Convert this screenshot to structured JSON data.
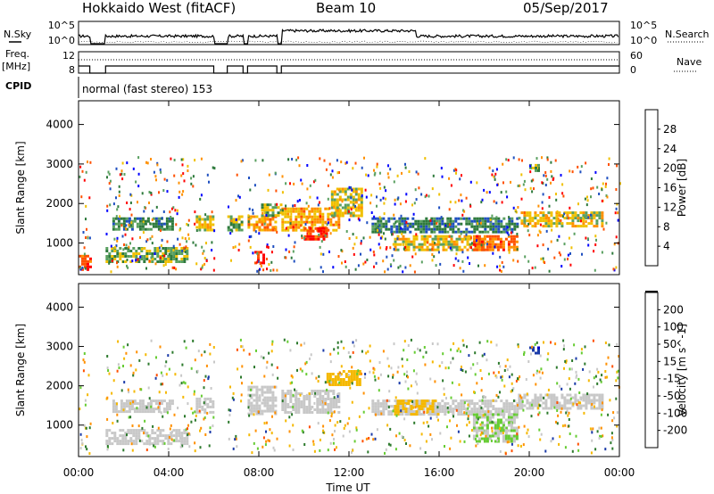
{
  "header": {
    "station": "Hokkaido West (fitACF)",
    "beam": "Beam 10",
    "date": "05/Sep/2017"
  },
  "top_panels": {
    "nsky_label": "N.Sky",
    "nsky_ticks": [
      "10^5",
      "10^0"
    ],
    "nsearch_label": "N.Search",
    "nsearch_ticks": [
      "10^5",
      "10^0"
    ],
    "freq_label": "Freq.",
    "freq_unit": "[MHz]",
    "freq_ticks": [
      "12",
      "8"
    ],
    "nave_label": "Nave",
    "nave_ticks": [
      "60",
      "0"
    ],
    "cpid_label": "CPID",
    "cpid_value": "normal (fast stereo) 153"
  },
  "colors": {
    "power_scale": [
      "#0000ff",
      "#1f4fc0",
      "#2e7a3c",
      "#5aa060",
      "#f0c000",
      "#ff9000",
      "#ff5000",
      "#ff0000"
    ],
    "velocity_scale": [
      "#ff0000",
      "#ff5000",
      "#ff9000",
      "#f5b800",
      "#c8c8c8",
      "#66cc33",
      "#2d7a2d",
      "#1a3aa8",
      "#0000cc"
    ],
    "ground_scatter": "#b4b4b4"
  },
  "chart_data": [
    {
      "type": "heatmap",
      "name": "power",
      "ylabel": "Slant Range [km]",
      "yticks": [
        "1000",
        "2000",
        "3000",
        "4000"
      ],
      "ylim": [
        200,
        4600
      ],
      "xlim_hours": [
        0,
        24
      ],
      "xticks": [
        "00:00",
        "04:00",
        "08:00",
        "12:00",
        "16:00",
        "20:00",
        "00:00"
      ],
      "colorbar": {
        "label": "Power [dB]",
        "ticks": [
          "4",
          "8",
          "12",
          "16",
          "20",
          "24",
          "28"
        ],
        "range": [
          0,
          30
        ]
      },
      "echo_regions": [
        {
          "t0": 0.0,
          "t1": 0.5,
          "r0": 300,
          "r1": 700,
          "level": 26
        },
        {
          "t0": 1.2,
          "t1": 4.8,
          "r0": 500,
          "r1": 900,
          "level": 13
        },
        {
          "t0": 1.5,
          "t1": 4.2,
          "r0": 1350,
          "r1": 1650,
          "level": 10
        },
        {
          "t0": 5.2,
          "t1": 6.0,
          "r0": 1350,
          "r1": 1700,
          "level": 16
        },
        {
          "t0": 6.6,
          "t1": 7.3,
          "r0": 1300,
          "r1": 1700,
          "level": 13
        },
        {
          "t0": 7.5,
          "t1": 8.8,
          "r0": 1300,
          "r1": 1700,
          "level": 20
        },
        {
          "t0": 7.8,
          "t1": 8.2,
          "r0": 500,
          "r1": 800,
          "level": 28
        },
        {
          "t0": 8.1,
          "t1": 9.0,
          "r0": 1700,
          "r1": 2000,
          "level": 14
        },
        {
          "t0": 9.0,
          "t1": 11.6,
          "r0": 1300,
          "r1": 1900,
          "level": 19
        },
        {
          "t0": 10.0,
          "t1": 11.0,
          "r0": 1100,
          "r1": 1400,
          "level": 26
        },
        {
          "t0": 11.2,
          "t1": 12.6,
          "r0": 1700,
          "r1": 2400,
          "level": 16
        },
        {
          "t0": 13.0,
          "t1": 19.5,
          "r0": 1300,
          "r1": 1650,
          "level": 9
        },
        {
          "t0": 14.0,
          "t1": 18.0,
          "r0": 800,
          "r1": 1200,
          "level": 17
        },
        {
          "t0": 17.5,
          "t1": 19.5,
          "r0": 800,
          "r1": 1200,
          "level": 23
        },
        {
          "t0": 19.5,
          "t1": 23.2,
          "r0": 1400,
          "r1": 1800,
          "level": 17
        },
        {
          "t0": 20.0,
          "t1": 20.4,
          "r0": 2800,
          "r1": 3000,
          "level": 13
        }
      ]
    },
    {
      "type": "heatmap",
      "name": "velocity",
      "ylabel": "Slant Range [km]",
      "yticks": [
        "1000",
        "2000",
        "3000",
        "4000"
      ],
      "ylim": [
        200,
        4600
      ],
      "xlim_hours": [
        0,
        24
      ],
      "xlabel": "Time UT",
      "xticks": [
        "00:00",
        "04:00",
        "08:00",
        "12:00",
        "16:00",
        "20:00",
        "00:00"
      ],
      "colorbar": {
        "label": "Velocity [m s^-1]",
        "ticks": [
          "200",
          "100",
          "50",
          "15",
          "-15",
          "-50",
          "-100",
          "-200"
        ],
        "range": [
          -250,
          250
        ]
      },
      "echo_regions": [
        {
          "t0": 1.2,
          "t1": 4.8,
          "r0": 500,
          "r1": 900,
          "level": 0
        },
        {
          "t0": 1.5,
          "t1": 4.2,
          "r0": 1350,
          "r1": 1650,
          "level": 0
        },
        {
          "t0": 5.2,
          "t1": 6.0,
          "r0": 1350,
          "r1": 1700,
          "level": 0
        },
        {
          "t0": 7.5,
          "t1": 8.8,
          "r0": 1300,
          "r1": 2000,
          "level": 0
        },
        {
          "t0": 9.0,
          "t1": 11.6,
          "r0": 1300,
          "r1": 1900,
          "level": 0
        },
        {
          "t0": 11.0,
          "t1": 12.5,
          "r0": 2000,
          "r1": 2400,
          "level": -60
        },
        {
          "t0": 13.0,
          "t1": 19.5,
          "r0": 1300,
          "r1": 1650,
          "level": 0
        },
        {
          "t0": 14.0,
          "t1": 16.0,
          "r0": 1300,
          "r1": 1650,
          "level": -40
        },
        {
          "t0": 17.5,
          "t1": 19.5,
          "r0": 600,
          "r1": 1300,
          "level": 30
        },
        {
          "t0": 19.5,
          "t1": 23.2,
          "r0": 1400,
          "r1": 1800,
          "level": 0
        },
        {
          "t0": 20.0,
          "t1": 20.4,
          "r0": 2800,
          "r1": 3000,
          "level": 180
        }
      ]
    }
  ]
}
